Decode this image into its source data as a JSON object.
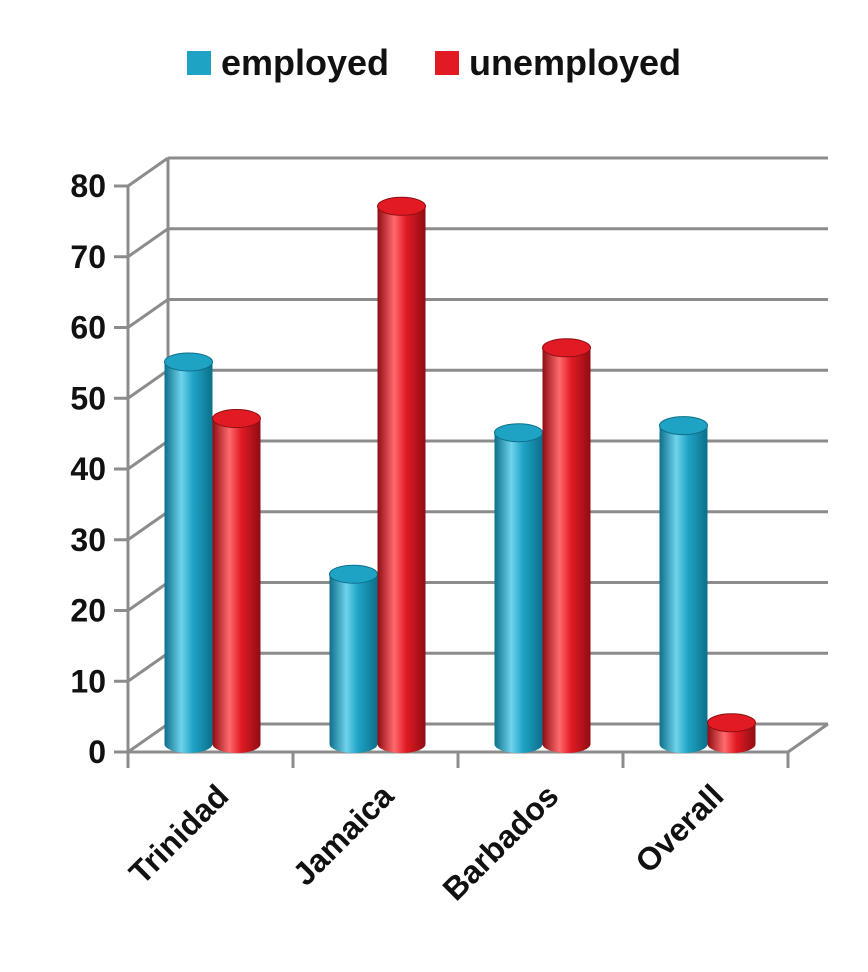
{
  "chart_data": {
    "type": "bar",
    "categories": [
      "Trinidad",
      "Jamaica",
      "Barbados",
      "Overall"
    ],
    "series": [
      {
        "name": "employed",
        "values": [
          54,
          24,
          44,
          45
        ],
        "color": "#1ea3c5"
      },
      {
        "name": "unemployed",
        "values": [
          46,
          76,
          56,
          3
        ],
        "color": "#e11a24"
      }
    ],
    "title": "",
    "xlabel": "",
    "ylabel": "",
    "ylim": [
      0,
      80
    ],
    "yticks": [
      0,
      10,
      20,
      30,
      40,
      50,
      60,
      70,
      80
    ],
    "grid": true,
    "legend_position": "top-center",
    "style": "3d-cylinder"
  }
}
